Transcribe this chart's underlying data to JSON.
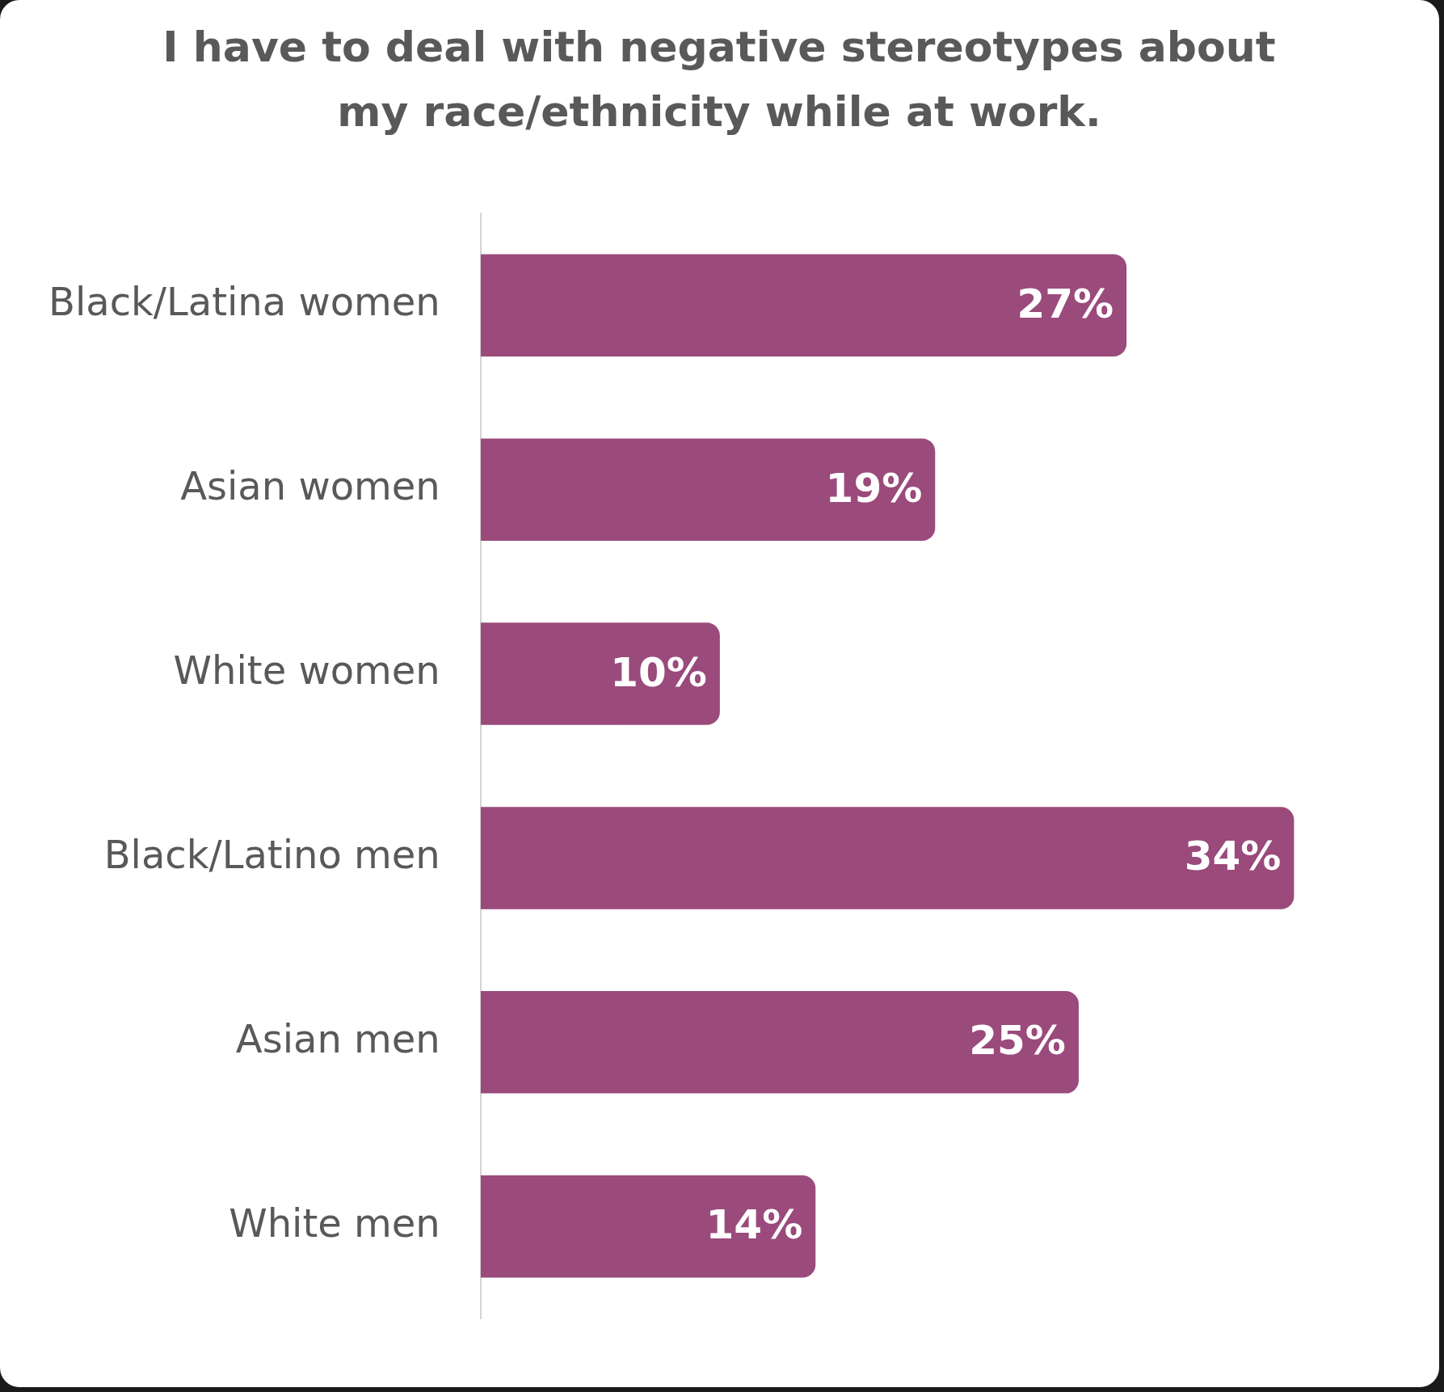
{
  "chart_data": {
    "type": "bar",
    "orientation": "horizontal",
    "title": "I have to deal with negative stereotypes about my race/ethnicity while at work.",
    "categories": [
      "Black/Latina women",
      "Asian women",
      "White women",
      "Black/Latino men",
      "Asian men",
      "White men"
    ],
    "values": [
      27,
      19,
      10,
      34,
      25,
      14
    ],
    "value_labels": [
      "27%",
      "19%",
      "10%",
      "34%",
      "25%",
      "14%"
    ],
    "color": "#9a4a7b",
    "tick_labels": "y",
    "grid": false,
    "legend": false
  }
}
